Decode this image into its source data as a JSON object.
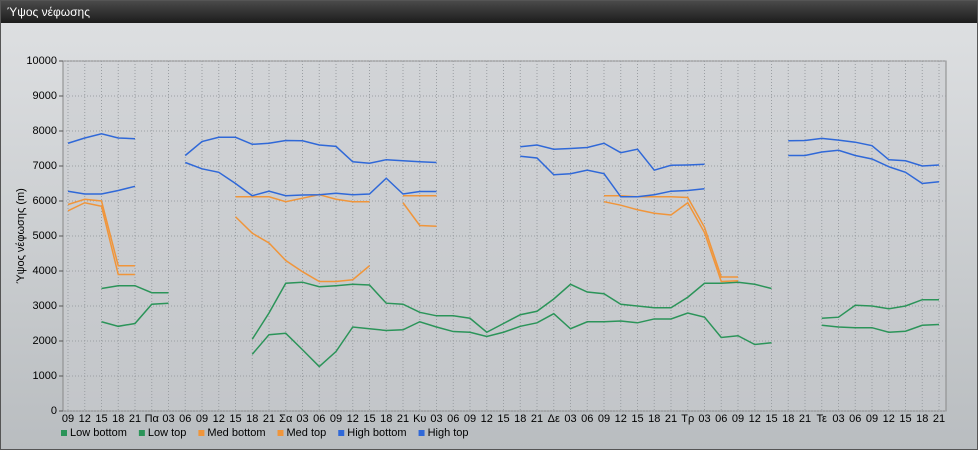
{
  "window_title": "Ύψος νέφωσης",
  "chart_data": {
    "type": "line",
    "ylabel": "Ύψος νέφωσης (m)",
    "categories": [
      "09",
      "12",
      "15",
      "18",
      "21",
      "Πα",
      "03",
      "06",
      "09",
      "12",
      "15",
      "18",
      "21",
      "Σα",
      "03",
      "06",
      "09",
      "12",
      "15",
      "18",
      "21",
      "Κυ",
      "03",
      "06",
      "09",
      "12",
      "15",
      "18",
      "21",
      "Δε",
      "03",
      "06",
      "09",
      "12",
      "15",
      "18",
      "21",
      "Τρ",
      "03",
      "06",
      "09",
      "12",
      "15",
      "18",
      "21",
      "Τε",
      "03",
      "06",
      "09",
      "12",
      "15",
      "18",
      "21"
    ],
    "ylim": [
      0,
      10000
    ],
    "yticks": [
      0,
      1000,
      2000,
      3000,
      4000,
      5000,
      6000,
      7000,
      8000,
      9000,
      10000
    ],
    "grid": true,
    "legend": "bottom",
    "series": [
      {
        "name": "Low bottom",
        "color": "#2b9459",
        "values": [
          null,
          null,
          2550,
          2420,
          2500,
          3050,
          3080,
          null,
          null,
          null,
          null,
          1620,
          2180,
          2220,
          1750,
          1270,
          1700,
          2400,
          2350,
          2300,
          2320,
          2550,
          2400,
          2270,
          2250,
          2130,
          2250,
          2420,
          2520,
          2780,
          2350,
          2550,
          2550,
          2570,
          2520,
          2630,
          2630,
          2800,
          2680,
          2100,
          2150,
          1900,
          1950,
          null,
          null,
          2450,
          2400,
          2380,
          2380,
          2250,
          2280,
          2450,
          2470
        ]
      },
      {
        "name": "Low top",
        "color": "#2b9459",
        "values": [
          null,
          null,
          3500,
          3580,
          3580,
          3380,
          3380,
          null,
          null,
          null,
          null,
          2050,
          2800,
          3650,
          3680,
          3550,
          3580,
          3620,
          3600,
          3080,
          3050,
          2820,
          2720,
          2720,
          2650,
          2250,
          2500,
          2750,
          2850,
          3200,
          3620,
          3400,
          3350,
          3050,
          3000,
          2950,
          2950,
          3250,
          3650,
          3650,
          3680,
          3620,
          3500,
          null,
          null,
          2650,
          2680,
          3020,
          3000,
          2920,
          3000,
          3180,
          3180
        ]
      },
      {
        "name": "Med bottom",
        "color": "#f0953a",
        "values": [
          5720,
          5950,
          5850,
          3900,
          3900,
          null,
          null,
          null,
          null,
          null,
          5550,
          5080,
          4800,
          4300,
          3980,
          3700,
          3700,
          3750,
          4150,
          null,
          5950,
          5300,
          5280,
          null,
          null,
          null,
          null,
          null,
          null,
          null,
          null,
          null,
          5980,
          5880,
          5750,
          5650,
          5600,
          5950,
          5100,
          3700,
          3720,
          null,
          null,
          null,
          null,
          null,
          null,
          null,
          null,
          null,
          null,
          null,
          null
        ]
      },
      {
        "name": "Med top",
        "color": "#f0953a",
        "values": [
          5900,
          6050,
          6000,
          4150,
          4150,
          null,
          null,
          null,
          null,
          null,
          6120,
          6120,
          6120,
          5980,
          6080,
          6180,
          6050,
          5980,
          5980,
          null,
          6150,
          6150,
          6150,
          null,
          null,
          null,
          null,
          null,
          null,
          null,
          null,
          null,
          6150,
          6150,
          6120,
          6120,
          6120,
          6100,
          5250,
          3830,
          3830,
          null,
          null,
          null,
          null,
          null,
          null,
          null,
          null,
          null,
          null,
          null,
          null
        ]
      },
      {
        "name": "High bottom",
        "color": "#2f68d8",
        "values": [
          6280,
          6200,
          6200,
          6300,
          6420,
          null,
          null,
          7100,
          6920,
          6820,
          6500,
          6150,
          6280,
          6150,
          6170,
          6180,
          6220,
          6180,
          6200,
          6650,
          6200,
          6270,
          6270,
          null,
          null,
          null,
          null,
          7280,
          7230,
          6750,
          6780,
          6880,
          6780,
          6120,
          6120,
          6180,
          6280,
          6300,
          6350,
          null,
          null,
          null,
          null,
          7300,
          7300,
          7400,
          7450,
          7300,
          7200,
          6980,
          6820,
          6500,
          6550
        ]
      },
      {
        "name": "High top",
        "color": "#2f68d8",
        "values": [
          7650,
          7800,
          7920,
          7800,
          7780,
          null,
          null,
          7300,
          7700,
          7820,
          7820,
          7620,
          7650,
          7730,
          7720,
          7600,
          7560,
          7120,
          7080,
          7180,
          7150,
          7120,
          7100,
          null,
          null,
          null,
          null,
          7550,
          7600,
          7480,
          7500,
          7530,
          7650,
          7380,
          7480,
          6880,
          7020,
          7030,
          7050,
          null,
          null,
          null,
          null,
          7720,
          7730,
          7790,
          7740,
          7680,
          7580,
          7180,
          7150,
          7000,
          7030
        ]
      }
    ]
  }
}
